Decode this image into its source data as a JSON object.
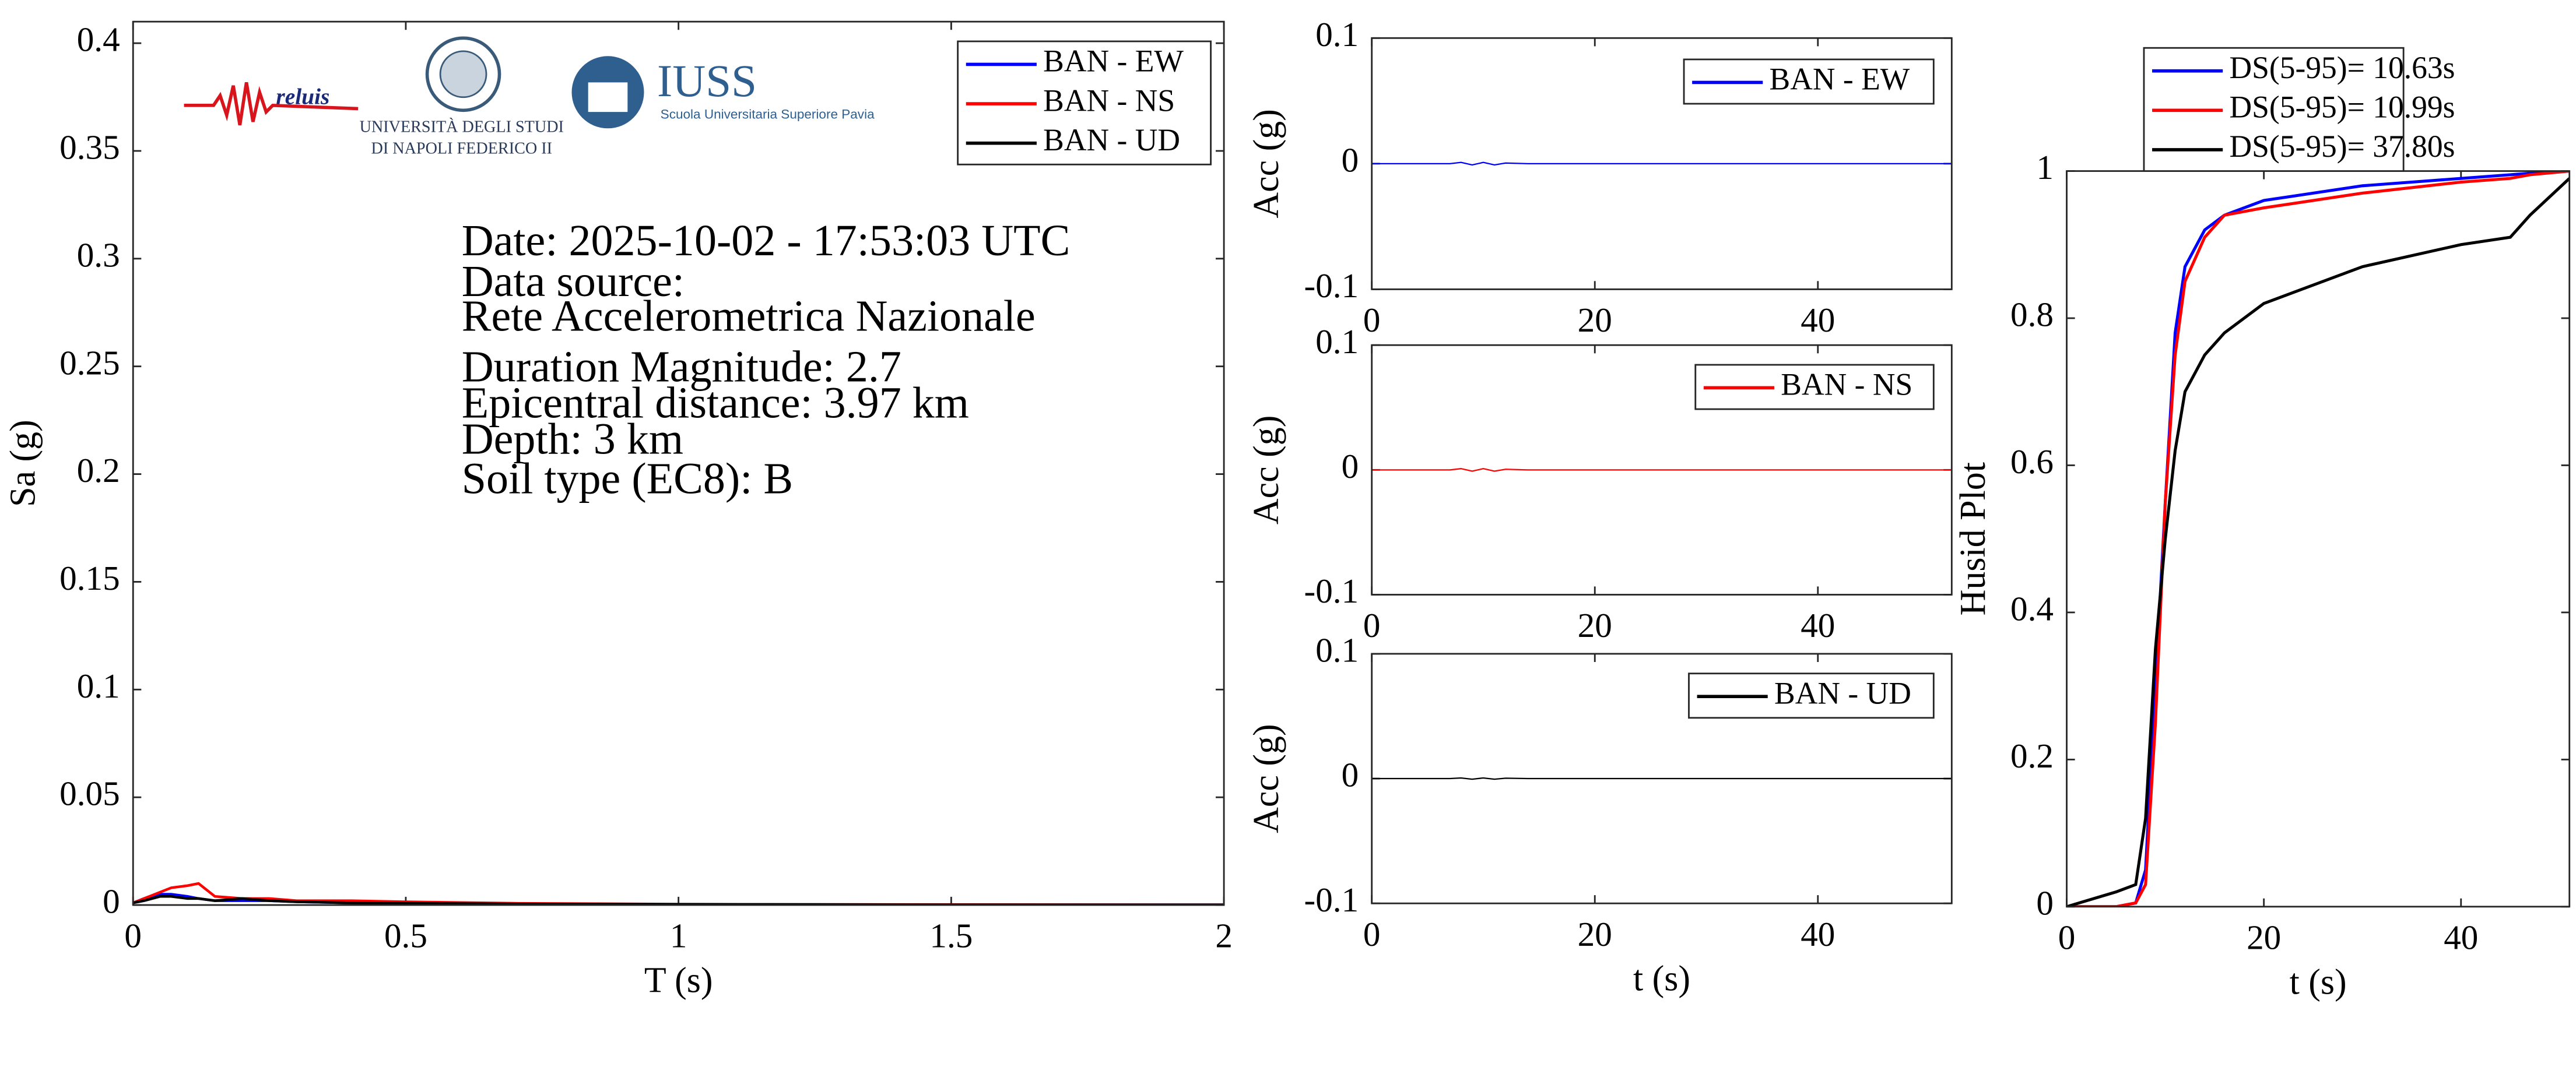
{
  "chart_data": [
    {
      "type": "line",
      "xlabel": "T (s)",
      "ylabel": "Sa (g)",
      "xlim": [
        0,
        2
      ],
      "ylim": [
        0,
        0.41
      ],
      "xticks": [
        0,
        0.5,
        1,
        1.5,
        2
      ],
      "yticks": [
        0,
        0.05,
        0.1,
        0.15,
        0.2,
        0.25,
        0.3,
        0.35,
        0.4
      ],
      "legend": "upper right",
      "x": [
        0,
        0.02,
        0.05,
        0.07,
        0.1,
        0.12,
        0.15,
        0.2,
        0.25,
        0.3,
        0.4,
        0.5,
        0.7,
        1,
        1.5,
        2
      ],
      "series": [
        {
          "name": "BAN - EW",
          "color": "#0000ff",
          "values": [
            0.001,
            0.003,
            0.005,
            0.005,
            0.004,
            0.003,
            0.002,
            0.002,
            0.002,
            0.0015,
            0.001,
            0.0008,
            0.0005,
            0.0003,
            0.0001,
            0.0001
          ]
        },
        {
          "name": "BAN - NS",
          "color": "#ff0000",
          "values": [
            0.001,
            0.003,
            0.006,
            0.008,
            0.009,
            0.01,
            0.004,
            0.003,
            0.003,
            0.002,
            0.002,
            0.0015,
            0.0008,
            0.0004,
            0.0002,
            0.0001
          ]
        },
        {
          "name": "BAN - UD",
          "color": "#000000",
          "values": [
            0.001,
            0.002,
            0.004,
            0.004,
            0.003,
            0.003,
            0.002,
            0.003,
            0.002,
            0.0015,
            0.001,
            0.0008,
            0.0005,
            0.0003,
            0.0001,
            0.0001
          ]
        }
      ],
      "annotations": [
        "Date: 2025-10-02 - 17:53:03 UTC",
        "Data source:",
        "Rete Accelerometrica Nazionale",
        "Duration Magnitude: 2.7",
        "Epicentral distance: 3.97 km",
        "Depth: 3 km",
        "Soil type (EC8): B"
      ],
      "logos": [
        "reluis",
        "UNIVERSITÀ DEGLI STUDI",
        "DI NAPOLI FEDERICO II",
        "IUSS",
        "Scuola Universitaria Superiore Pavia"
      ]
    },
    {
      "type": "line",
      "ylabel": "Acc (g)",
      "xlim": [
        0,
        52
      ],
      "ylim": [
        -0.1,
        0.1
      ],
      "xticks": [
        0,
        20,
        40
      ],
      "yticks": [
        -0.1,
        0,
        0.1
      ],
      "legend": "upper right",
      "x": [
        0,
        7,
        8,
        9,
        10,
        11,
        12,
        14,
        20,
        52
      ],
      "series": [
        {
          "name": "BAN - EW",
          "color": "#0000ff",
          "values": [
            0,
            0,
            0.001,
            -0.001,
            0.001,
            -0.001,
            0.0005,
            0,
            0,
            0
          ]
        }
      ]
    },
    {
      "type": "line",
      "ylabel": "Acc (g)",
      "xlim": [
        0,
        52
      ],
      "ylim": [
        -0.1,
        0.1
      ],
      "xticks": [
        0,
        20,
        40
      ],
      "yticks": [
        -0.1,
        0,
        0.1
      ],
      "legend": "upper right",
      "x": [
        0,
        7,
        8,
        9,
        10,
        11,
        12,
        14,
        20,
        52
      ],
      "series": [
        {
          "name": "BAN - NS",
          "color": "#ff0000",
          "values": [
            0,
            0,
            0.001,
            -0.001,
            0.001,
            -0.001,
            0.0005,
            0,
            0,
            0
          ]
        }
      ]
    },
    {
      "type": "line",
      "xlabel": "t (s)",
      "ylabel": "Acc (g)",
      "xlim": [
        0,
        52
      ],
      "ylim": [
        -0.1,
        0.1
      ],
      "xticks": [
        0,
        20,
        40
      ],
      "yticks": [
        -0.1,
        0,
        0.1
      ],
      "legend": "upper right",
      "x": [
        0,
        7,
        8,
        9,
        10,
        11,
        12,
        14,
        20,
        52
      ],
      "series": [
        {
          "name": "BAN - UD",
          "color": "#000000",
          "values": [
            0,
            0,
            0.0005,
            -0.0005,
            0.0005,
            -0.0005,
            0.0003,
            0,
            0,
            0
          ]
        }
      ]
    },
    {
      "type": "line",
      "xlabel": "t (s)",
      "ylabel": "Husid Plot",
      "xlim": [
        0,
        51
      ],
      "ylim": [
        0,
        1
      ],
      "xticks": [
        0,
        20,
        40
      ],
      "yticks": [
        0,
        0.2,
        0.4,
        0.6,
        0.8,
        1
      ],
      "legend": "upper center",
      "x": [
        0,
        5,
        7,
        8,
        9,
        10,
        11,
        12,
        14,
        16,
        20,
        30,
        40,
        45,
        47,
        51
      ],
      "series": [
        {
          "name": "DS(5-95)= 10.63s",
          "color": "#0000ff",
          "values": [
            0,
            0,
            0.005,
            0.05,
            0.3,
            0.55,
            0.78,
            0.87,
            0.92,
            0.94,
            0.96,
            0.98,
            0.99,
            0.995,
            0.997,
            1
          ]
        },
        {
          "name": "DS(5-95)= 10.99s",
          "color": "#ff0000",
          "values": [
            0,
            0,
            0.005,
            0.03,
            0.25,
            0.55,
            0.75,
            0.85,
            0.91,
            0.94,
            0.95,
            0.97,
            0.985,
            0.99,
            0.995,
            1
          ]
        },
        {
          "name": "DS(5-95)= 37.80s",
          "color": "#000000",
          "values": [
            0,
            0.02,
            0.03,
            0.12,
            0.35,
            0.5,
            0.62,
            0.7,
            0.75,
            0.78,
            0.82,
            0.87,
            0.9,
            0.91,
            0.94,
            0.99
          ]
        }
      ]
    }
  ]
}
